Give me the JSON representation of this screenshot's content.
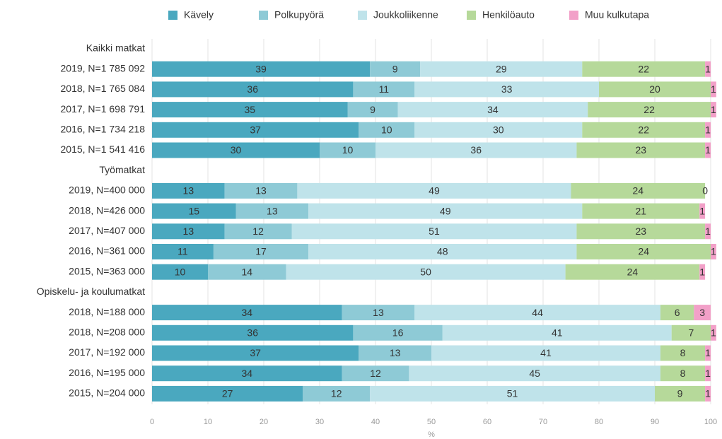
{
  "chart_data": {
    "type": "stacked-barh",
    "categories": [
      "Kaikki matkat",
      "2019, N=1 785 092",
      "2018, N=1 765 084",
      "2017, N=1 698 791",
      "2016, N=1 734 218",
      "2015, N=1 541 416",
      "Työmatkat",
      "2019, N=400 000",
      "2018, N=426 000",
      "2017, N=407 000",
      "2016, N=361 000",
      "2015, N=363 000",
      "Opiskelu- ja koulumatkat",
      "2018, N=188 000",
      "2018, N=208 000",
      "2017, N=192 000",
      "2016, N=195 000",
      "2015, N=204 000"
    ],
    "series": [
      {
        "name": "Kävely",
        "color": "#4aa8bf",
        "values": [
          null,
          39,
          36,
          35,
          37,
          30,
          null,
          13,
          15,
          13,
          11,
          10,
          null,
          34,
          36,
          37,
          34,
          27
        ]
      },
      {
        "name": "Polkupyörä",
        "color": "#8ecad6",
        "values": [
          null,
          9,
          11,
          9,
          10,
          10,
          null,
          13,
          13,
          12,
          17,
          14,
          null,
          13,
          16,
          13,
          12,
          12
        ]
      },
      {
        "name": "Joukkoliikenne",
        "color": "#bfe3ea",
        "values": [
          null,
          29,
          33,
          34,
          30,
          36,
          null,
          49,
          49,
          51,
          48,
          50,
          null,
          44,
          41,
          41,
          45,
          51
        ]
      },
      {
        "name": "Henkilöauto",
        "color": "#b6d99a",
        "values": [
          null,
          22,
          20,
          22,
          22,
          23,
          null,
          24,
          21,
          23,
          24,
          24,
          null,
          6,
          7,
          8,
          8,
          9
        ]
      },
      {
        "name": "Muu kulkutapa",
        "color": "#f2a0c8",
        "values": [
          null,
          1,
          1,
          1,
          1,
          1,
          null,
          0,
          1,
          1,
          1,
          1,
          null,
          3,
          1,
          1,
          1,
          1
        ]
      }
    ],
    "xlabel": "%",
    "xlim": [
      0,
      100
    ],
    "xticks": [
      0,
      10,
      20,
      30,
      40,
      50,
      60,
      70,
      80,
      90,
      100
    ],
    "grid": true,
    "legend": "top"
  }
}
